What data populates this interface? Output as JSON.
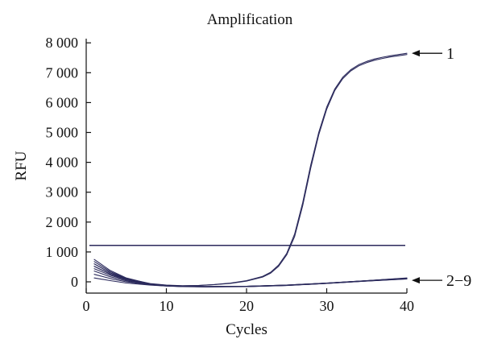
{
  "chart_data": {
    "type": "line",
    "title": "Amplification",
    "xlabel": "Cycles",
    "ylabel": "RFU",
    "xlim": [
      0,
      40
    ],
    "ylim": [
      -300,
      8000
    ],
    "x_ticks": [
      {
        "value": 0,
        "label": "0"
      },
      {
        "value": 10,
        "label": "10"
      },
      {
        "value": 20,
        "label": "20"
      },
      {
        "value": 30,
        "label": "30"
      },
      {
        "value": 40,
        "label": "40"
      }
    ],
    "y_ticks": [
      {
        "value": 0,
        "label": "0"
      },
      {
        "value": 1000,
        "label": "1 000"
      },
      {
        "value": 2000,
        "label": "2 000"
      },
      {
        "value": 3000,
        "label": "3 000"
      },
      {
        "value": 4000,
        "label": "4 000"
      },
      {
        "value": 5000,
        "label": "5 000"
      },
      {
        "value": 6000,
        "label": "6 000"
      },
      {
        "value": 7000,
        "label": "7 000"
      },
      {
        "value": 8000,
        "label": "8 000"
      }
    ],
    "threshold": 1220,
    "line_color": "#2b2a5c",
    "series": [
      {
        "group": "1",
        "x": [
          1,
          3,
          5,
          8,
          10,
          12,
          14,
          16,
          18,
          20,
          22,
          23,
          24,
          25,
          26,
          27,
          28,
          29,
          30,
          31,
          32,
          33,
          34,
          35,
          36,
          37,
          38,
          39,
          40
        ],
        "y": [
          600,
          300,
          110,
          -60,
          -110,
          -130,
          -120,
          -90,
          -40,
          40,
          180,
          320,
          560,
          950,
          1600,
          2650,
          3900,
          5000,
          5850,
          6450,
          6850,
          7100,
          7270,
          7380,
          7460,
          7520,
          7570,
          7610,
          7650
        ]
      },
      {
        "group": "1",
        "x": [
          1,
          3,
          5,
          8,
          10,
          12,
          14,
          16,
          18,
          20,
          22,
          23,
          24,
          25,
          26,
          27,
          28,
          29,
          30,
          31,
          32,
          33,
          34,
          35,
          36,
          37,
          38,
          39,
          40
        ],
        "y": [
          520,
          260,
          90,
          -70,
          -115,
          -135,
          -125,
          -95,
          -50,
          25,
          160,
          290,
          520,
          900,
          1520,
          2550,
          3800,
          4920,
          5780,
          6400,
          6800,
          7060,
          7230,
          7340,
          7420,
          7480,
          7530,
          7570,
          7610
        ]
      },
      {
        "group": "2-9",
        "x": [
          1,
          3,
          5,
          8,
          10,
          12,
          15,
          20,
          25,
          30,
          35,
          40
        ],
        "y": [
          750,
          380,
          130,
          -70,
          -120,
          -150,
          -160,
          -150,
          -110,
          -40,
          40,
          120
        ]
      },
      {
        "group": "2-9",
        "x": [
          1,
          3,
          5,
          8,
          10,
          12,
          15,
          20,
          25,
          30,
          35,
          40
        ],
        "y": [
          680,
          340,
          110,
          -80,
          -130,
          -155,
          -165,
          -155,
          -115,
          -45,
          35,
          110
        ]
      },
      {
        "group": "2-9",
        "x": [
          1,
          3,
          5,
          8,
          10,
          12,
          15,
          20,
          25,
          30,
          35,
          40
        ],
        "y": [
          600,
          300,
          90,
          -85,
          -130,
          -150,
          -160,
          -150,
          -110,
          -40,
          40,
          130
        ]
      },
      {
        "group": "2-9",
        "x": [
          1,
          3,
          5,
          8,
          10,
          12,
          15,
          20,
          25,
          30,
          35,
          40
        ],
        "y": [
          520,
          260,
          70,
          -90,
          -135,
          -155,
          -165,
          -160,
          -120,
          -50,
          30,
          100
        ]
      },
      {
        "group": "2-9",
        "x": [
          1,
          3,
          5,
          8,
          10,
          12,
          15,
          20,
          25,
          30,
          35,
          40
        ],
        "y": [
          440,
          220,
          60,
          -90,
          -130,
          -150,
          -160,
          -150,
          -115,
          -45,
          35,
          115
        ]
      },
      {
        "group": "2-9",
        "x": [
          1,
          3,
          5,
          8,
          10,
          12,
          15,
          20,
          25,
          30,
          35,
          40
        ],
        "y": [
          360,
          170,
          30,
          -100,
          -140,
          -160,
          -170,
          -160,
          -125,
          -55,
          25,
          95
        ]
      },
      {
        "group": "2-9",
        "x": [
          1,
          3,
          5,
          8,
          10,
          12,
          15,
          20,
          25,
          30,
          35,
          40
        ],
        "y": [
          250,
          110,
          0,
          -100,
          -135,
          -150,
          -160,
          -150,
          -110,
          -45,
          35,
          125
        ]
      },
      {
        "group": "2-9",
        "x": [
          1,
          3,
          5,
          8,
          10,
          12,
          15,
          20,
          25,
          30,
          35,
          40
        ],
        "y": [
          130,
          40,
          -40,
          -110,
          -140,
          -155,
          -165,
          -155,
          -120,
          -50,
          30,
          105
        ]
      }
    ],
    "annotations": [
      {
        "label": "1",
        "x": 40,
        "y": 7650
      },
      {
        "label": "2−9",
        "x": 40,
        "y": 50
      }
    ]
  }
}
